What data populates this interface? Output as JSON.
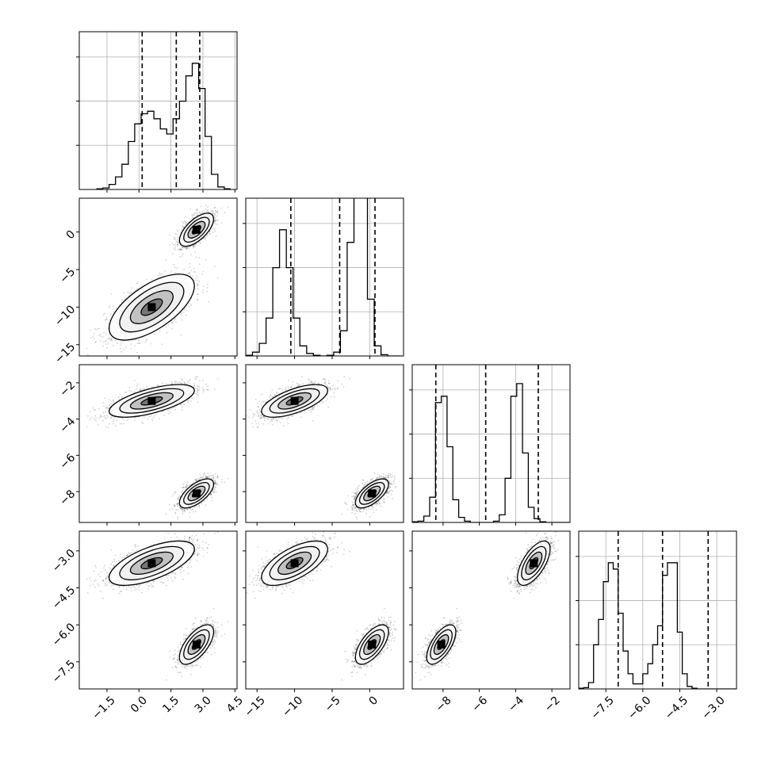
{
  "chart_data": {
    "type": "corner",
    "parameters": [
      {
        "ticks": [
          -1.5,
          0.0,
          1.5,
          3.0,
          4.5
        ],
        "tick_labels": [
          "−1.5",
          "0.0",
          "1.5",
          "3.0",
          "4.5"
        ],
        "range": [
          -2.8,
          4.6
        ],
        "quantiles": [
          0.15,
          1.75,
          2.85
        ],
        "histogram": {
          "bin_start": -2.0,
          "bin_width": 0.3,
          "counts": [
            0.005,
            0.012,
            0.04,
            0.1,
            0.2,
            0.38,
            0.52,
            0.6,
            0.62,
            0.56,
            0.48,
            0.44,
            0.56,
            0.7,
            0.9,
            1.0,
            0.8,
            0.42,
            0.12,
            0.02,
            0.005
          ]
        }
      },
      {
        "ticks": [
          -15,
          -10,
          -5,
          0
        ],
        "tick_labels": [
          "−15",
          "−10",
          "−5",
          "0"
        ],
        "range": [
          -16.5,
          4.5
        ],
        "quantiles": [
          -10.5,
          -4.0,
          0.7
        ],
        "histogram": {
          "bin_start": -16.5,
          "bin_width": 0.9,
          "counts": [
            0.005,
            0.03,
            0.1,
            0.3,
            0.7,
            1.0,
            0.7,
            0.3,
            0.08,
            0.02,
            0.005,
            0.0,
            0.005,
            0.03,
            0.2,
            0.9,
            1.55,
            1.65,
            0.45,
            0.08,
            0.01,
            0.0,
            0.0
          ]
        }
      },
      {
        "ticks": [
          -8,
          -6,
          -4,
          -2
        ],
        "tick_labels": [
          "−8",
          "−6",
          "−4",
          "−2"
        ],
        "range": [
          -9.7,
          -1.0
        ],
        "quantiles": [
          -8.4,
          -5.65,
          -2.75
        ],
        "histogram": {
          "bin_start": -9.7,
          "bin_width": 0.32,
          "counts": [
            0.005,
            0.01,
            0.05,
            0.2,
            0.95,
            1.0,
            0.6,
            0.18,
            0.04,
            0.01,
            0.0,
            0.0,
            0.0,
            0.0,
            0.01,
            0.06,
            0.35,
            1.0,
            1.1,
            0.55,
            0.12,
            0.03,
            0.005,
            0.0,
            0.0,
            0.0,
            0.0,
            0.0
          ]
        }
      },
      {
        "ticks": [
          -7.5,
          -6.0,
          -4.5,
          -3.0
        ],
        "tick_labels": [
          "−7.5",
          "−6.0",
          "−4.5",
          "−3.0"
        ],
        "range": [
          -8.6,
          -2.2
        ],
        "quantiles": [
          -7.0,
          -5.2,
          -3.35
        ],
        "histogram": {
          "bin_start": -8.6,
          "bin_width": 0.2,
          "counts": [
            0.005,
            0.01,
            0.05,
            0.35,
            0.55,
            0.85,
            1.0,
            0.95,
            0.6,
            0.3,
            0.12,
            0.04,
            0.04,
            0.12,
            0.2,
            0.35,
            0.5,
            0.9,
            1.0,
            1.0,
            0.45,
            0.12,
            0.02,
            0.005,
            0.0,
            0.0,
            0.0,
            0.0,
            0.0,
            0.0,
            0.0,
            0.0
          ]
        }
      }
    ],
    "modes": [
      {
        "mean": [
          0.6,
          -10.0,
          -3.0,
          -3.5
        ],
        "sd": [
          1.0,
          2.2,
          0.45,
          0.45
        ]
      },
      {
        "mean": [
          2.7,
          0.3,
          -8.1,
          -6.8
        ],
        "sd": [
          0.4,
          1.1,
          0.4,
          0.4
        ]
      }
    ],
    "grid": true,
    "diag_ylim": [
      0,
      1.25
    ]
  }
}
